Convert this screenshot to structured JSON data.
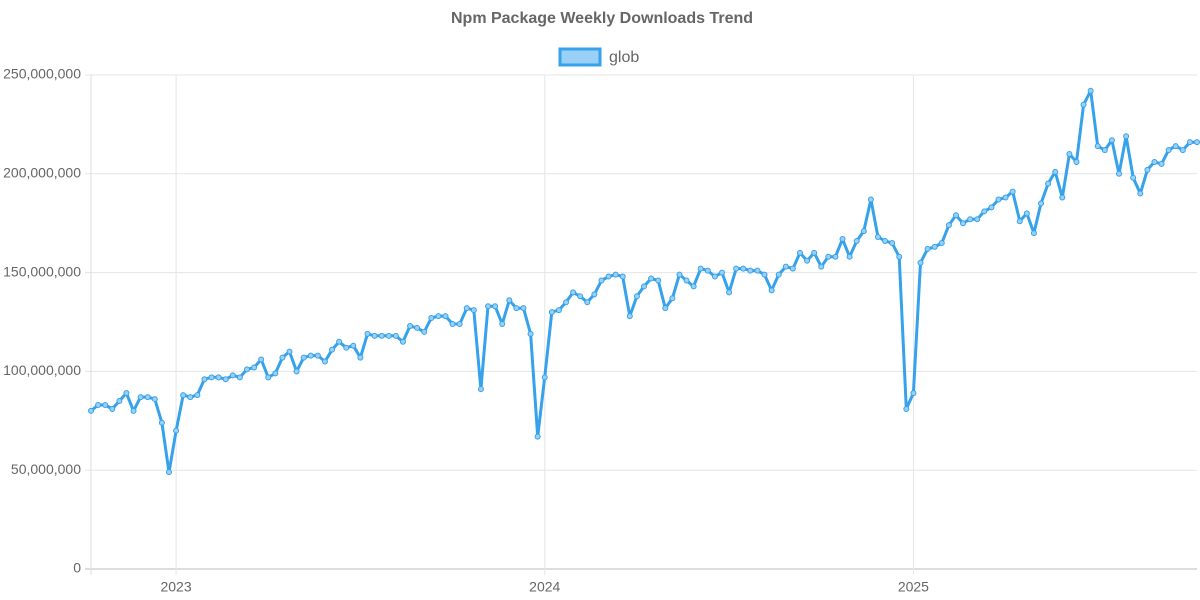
{
  "chart_data": {
    "type": "line",
    "title": "Npm Package Weekly Downloads Trend",
    "categories": [
      null,
      null,
      null,
      null,
      null,
      null,
      null,
      null,
      null,
      null,
      null,
      null,
      null,
      null,
      null,
      null,
      null,
      null,
      null,
      null,
      null,
      null,
      null,
      null,
      null,
      null,
      null,
      null,
      null,
      null,
      null,
      null,
      null,
      null,
      null,
      null,
      null,
      null,
      null,
      null,
      null,
      null,
      null,
      null,
      null,
      null,
      null,
      null,
      null,
      null,
      null,
      null,
      null,
      null,
      null,
      null,
      null,
      null,
      null,
      null,
      null,
      null,
      null,
      null,
      null,
      null,
      null,
      null,
      null,
      null,
      null,
      null,
      null,
      null,
      null,
      null,
      null,
      null,
      null,
      null,
      null,
      null,
      null,
      null,
      null,
      null,
      null,
      null,
      null,
      null,
      null,
      null,
      null,
      null,
      null,
      null,
      null,
      null,
      null,
      null,
      null,
      null,
      null,
      null,
      null,
      null,
      null,
      null,
      null,
      null,
      null,
      null,
      null,
      null,
      null,
      null,
      null,
      null,
      null,
      null,
      null,
      null,
      null,
      null,
      null,
      null,
      null,
      null,
      null,
      null,
      null,
      null,
      null,
      null,
      null,
      null,
      null,
      null,
      null,
      null,
      null,
      null,
      null,
      null,
      null,
      null,
      null,
      null,
      null,
      null,
      null,
      null,
      null,
      null,
      null,
      null,
      null
    ],
    "series": [
      {
        "name": "glob",
        "color": "#36a2eb",
        "fill": "#9ad0f5",
        "values": [
          80000000.0,
          83000000.0,
          83000000.0,
          81000000.0,
          85000000.0,
          89000000.0,
          80000000.0,
          87000000.0,
          87000000.0,
          86000000.0,
          74000000.0,
          49000000.0,
          70000000.0,
          88000000.0,
          87000000.0,
          88000000.0,
          96000000.0,
          97000000.0,
          97000000.0,
          96000000.0,
          98000000.0,
          97000000.0,
          101000000.0,
          102000000.0,
          106000000.0,
          97000000.0,
          99000000.0,
          107000000.0,
          110000000.0,
          100000000.0,
          107000000.0,
          108000000.0,
          108000000.0,
          105000000.0,
          111000000.0,
          115000000.0,
          112000000.0,
          113000000.0,
          107000000.0,
          119000000.0,
          118000000.0,
          118000000.0,
          118000000.0,
          118000000.0,
          115000000.0,
          123000000.0,
          122000000.0,
          120000000.0,
          127000000.0,
          128000000.0,
          128000000.0,
          124000000.0,
          124000000.0,
          132000000.0,
          131000000.0,
          91000000.0,
          133000000.0,
          133000000.0,
          124000000.0,
          136000000.0,
          132000000.0,
          132000000.0,
          119000000.0,
          67000000.0,
          97000000.0,
          130000000.0,
          131000000.0,
          135000000.0,
          140000000.0,
          138000000.0,
          135000000.0,
          139000000.0,
          146000000.0,
          148000000.0,
          149000000.0,
          148000000.0,
          128000000.0,
          138000000.0,
          143000000.0,
          147000000.0,
          146000000.0,
          132000000.0,
          137000000.0,
          149000000.0,
          146000000.0,
          143000000.0,
          152000000.0,
          151000000.0,
          148000000.0,
          150000000.0,
          140000000.0,
          152000000.0,
          152000000.0,
          151000000.0,
          151000000.0,
          149000000.0,
          141000000.0,
          149000000.0,
          153000000.0,
          152000000.0,
          160000000.0,
          156000000.0,
          160000000.0,
          153000000.0,
          158000000.0,
          158000000.0,
          167000000.0,
          158000000.0,
          166000000.0,
          171000000.0,
          187000000.0,
          168000000.0,
          166000000.0,
          165000000.0,
          158000000.0,
          81000000.0,
          89000000.0,
          155000000.0,
          162000000.0,
          163000000.0,
          165000000.0,
          174000000.0,
          179000000.0,
          175000000.0,
          177000000.0,
          177000000.0,
          181000000.0,
          183000000.0,
          187000000.0,
          188000000.0,
          191000000.0,
          176000000.0,
          180000000.0,
          170000000.0,
          185000000.0,
          195000000.0,
          201000000.0,
          188000000.0,
          210000000.0,
          206000000.0,
          235000000.0,
          242000000.0,
          214000000.0,
          212000000.0,
          217000000.0,
          200000000.0,
          219000000.0,
          198000000.0,
          190000000.0,
          202000000.0,
          206000000.0,
          205000000.0,
          212000000.0,
          214000000.0,
          212000000.0,
          216000000.0,
          216000000.0
        ]
      }
    ],
    "xlim": [
      0,
      156
    ],
    "xticks": [
      {
        "value": 12,
        "label": "2023"
      },
      {
        "value": 64,
        "label": "2024"
      },
      {
        "value": 116,
        "label": "2025"
      }
    ],
    "ylim": [
      0,
      250000000
    ],
    "yticks": [
      0,
      {
        "value": 50000000,
        "label": "50,000,000"
      },
      {
        "value": 100000000,
        "label": "100,000,000"
      },
      {
        "value": 150000000,
        "label": "150,000,000"
      },
      {
        "value": 200000000,
        "label": "200,000,000"
      },
      {
        "value": 250000000,
        "label": "250,000,000"
      }
    ],
    "grid": true,
    "legend": "top"
  }
}
